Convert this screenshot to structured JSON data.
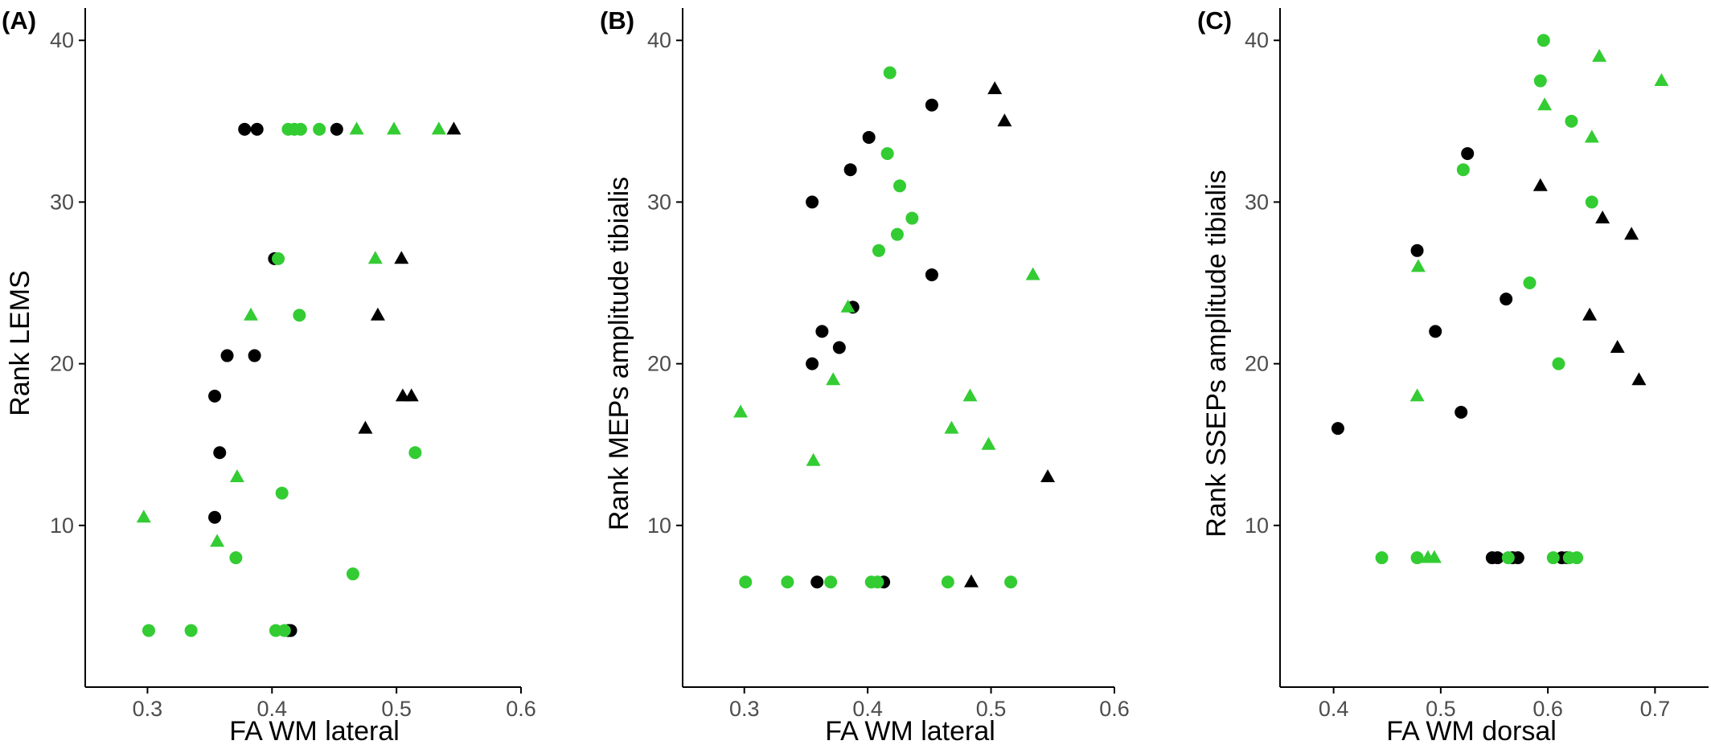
{
  "colors": {
    "black": "#000000",
    "green": "#33cc33",
    "axis": "#000000",
    "tick_text": "#4d4d4d"
  },
  "chart_data": [
    {
      "type": "scatter",
      "panel_label": "(A)",
      "title": "",
      "xlabel": "FA WM lateral",
      "ylabel": "Rank LEMS",
      "xlim": [
        0.25,
        0.6
      ],
      "ylim": [
        0,
        42
      ],
      "x_ticks": [
        "0.3",
        "0.4",
        "0.5",
        "0.6"
      ],
      "x_tick_values": [
        0.3,
        0.4,
        0.5,
        0.6
      ],
      "y_ticks": [
        "10",
        "20",
        "30",
        "40"
      ],
      "y_tick_values": [
        10,
        20,
        30,
        40
      ],
      "grid": false,
      "legend": "none",
      "series": [
        {
          "color": "black",
          "shape": "circle",
          "points": [
            [
              0.378,
              34.5
            ],
            [
              0.388,
              34.5
            ],
            [
              0.452,
              34.5
            ],
            [
              0.402,
              26.5
            ],
            [
              0.364,
              20.5
            ],
            [
              0.386,
              20.5
            ],
            [
              0.354,
              18
            ],
            [
              0.358,
              14.5
            ],
            [
              0.354,
              10.5
            ],
            [
              0.413,
              3.5
            ],
            [
              0.415,
              3.5
            ]
          ]
        },
        {
          "color": "black",
          "shape": "triangle",
          "points": [
            [
              0.546,
              34.5
            ],
            [
              0.504,
              26.5
            ],
            [
              0.485,
              23
            ],
            [
              0.505,
              18
            ],
            [
              0.512,
              18
            ],
            [
              0.475,
              16
            ]
          ]
        },
        {
          "color": "green",
          "shape": "circle",
          "points": [
            [
              0.413,
              34.5
            ],
            [
              0.418,
              34.5
            ],
            [
              0.423,
              34.5
            ],
            [
              0.438,
              34.5
            ],
            [
              0.405,
              26.5
            ],
            [
              0.422,
              23
            ],
            [
              0.515,
              14.5
            ],
            [
              0.408,
              12
            ],
            [
              0.371,
              8
            ],
            [
              0.465,
              7
            ],
            [
              0.301,
              3.5
            ],
            [
              0.335,
              3.5
            ],
            [
              0.403,
              3.5
            ],
            [
              0.41,
              3.5
            ]
          ]
        },
        {
          "color": "green",
          "shape": "triangle",
          "points": [
            [
              0.468,
              34.5
            ],
            [
              0.498,
              34.5
            ],
            [
              0.534,
              34.5
            ],
            [
              0.483,
              26.5
            ],
            [
              0.383,
              23
            ],
            [
              0.372,
              13
            ],
            [
              0.297,
              10.5
            ],
            [
              0.356,
              9
            ]
          ]
        }
      ]
    },
    {
      "type": "scatter",
      "panel_label": "(B)",
      "title": "",
      "xlabel": "FA WM lateral",
      "ylabel": "Rank MEPs amplitude tibialis",
      "xlim": [
        0.25,
        0.6
      ],
      "ylim": [
        0,
        42
      ],
      "x_ticks": [
        "0.3",
        "0.4",
        "0.5",
        "0.6"
      ],
      "x_tick_values": [
        0.3,
        0.4,
        0.5,
        0.6
      ],
      "y_ticks": [
        "10",
        "20",
        "30",
        "40"
      ],
      "y_tick_values": [
        10,
        20,
        30,
        40
      ],
      "grid": false,
      "legend": "none",
      "series": [
        {
          "color": "black",
          "shape": "circle",
          "points": [
            [
              0.452,
              36
            ],
            [
              0.401,
              34
            ],
            [
              0.386,
              32
            ],
            [
              0.355,
              30
            ],
            [
              0.452,
              25.5
            ],
            [
              0.388,
              23.5
            ],
            [
              0.363,
              22
            ],
            [
              0.377,
              21
            ],
            [
              0.355,
              20
            ],
            [
              0.359,
              6.5
            ],
            [
              0.413,
              6.5
            ]
          ]
        },
        {
          "color": "black",
          "shape": "triangle",
          "points": [
            [
              0.503,
              37
            ],
            [
              0.511,
              35
            ],
            [
              0.546,
              13
            ],
            [
              0.484,
              6.5
            ]
          ]
        },
        {
          "color": "green",
          "shape": "circle",
          "points": [
            [
              0.418,
              38
            ],
            [
              0.416,
              33
            ],
            [
              0.426,
              31
            ],
            [
              0.436,
              29
            ],
            [
              0.424,
              28
            ],
            [
              0.409,
              27
            ],
            [
              0.301,
              6.5
            ],
            [
              0.335,
              6.5
            ],
            [
              0.37,
              6.5
            ],
            [
              0.403,
              6.5
            ],
            [
              0.408,
              6.5
            ],
            [
              0.465,
              6.5
            ],
            [
              0.516,
              6.5
            ]
          ]
        },
        {
          "color": "green",
          "shape": "triangle",
          "points": [
            [
              0.534,
              25.5
            ],
            [
              0.384,
              23.5
            ],
            [
              0.372,
              19
            ],
            [
              0.483,
              18
            ],
            [
              0.297,
              17
            ],
            [
              0.468,
              16
            ],
            [
              0.498,
              15
            ],
            [
              0.356,
              14
            ]
          ]
        }
      ]
    },
    {
      "type": "scatter",
      "panel_label": "(C)",
      "title": "",
      "xlabel": "FA WM dorsal",
      "ylabel": "Rank  SSEPs amplitude tibialis",
      "xlim": [
        0.35,
        0.75
      ],
      "ylim": [
        0,
        42
      ],
      "x_ticks": [
        "0.4",
        "0.5",
        "0.6",
        "0.7"
      ],
      "x_tick_values": [
        0.4,
        0.5,
        0.6,
        0.7
      ],
      "y_ticks": [
        "10",
        "20",
        "30",
        "40"
      ],
      "y_tick_values": [
        10,
        20,
        30,
        40
      ],
      "grid": false,
      "legend": "none",
      "series": [
        {
          "color": "black",
          "shape": "circle",
          "points": [
            [
              0.525,
              33
            ],
            [
              0.478,
              27
            ],
            [
              0.561,
              24
            ],
            [
              0.495,
              22
            ],
            [
              0.519,
              17
            ],
            [
              0.404,
              16
            ],
            [
              0.548,
              8
            ],
            [
              0.553,
              8
            ],
            [
              0.567,
              8
            ],
            [
              0.572,
              8
            ],
            [
              0.613,
              8
            ],
            [
              0.618,
              8
            ]
          ]
        },
        {
          "color": "black",
          "shape": "triangle",
          "points": [
            [
              0.593,
              31
            ],
            [
              0.651,
              29
            ],
            [
              0.678,
              28
            ],
            [
              0.639,
              23
            ],
            [
              0.665,
              21
            ],
            [
              0.685,
              19
            ]
          ]
        },
        {
          "color": "green",
          "shape": "circle",
          "points": [
            [
              0.596,
              40
            ],
            [
              0.593,
              37.5
            ],
            [
              0.622,
              35
            ],
            [
              0.521,
              32
            ],
            [
              0.641,
              30
            ],
            [
              0.583,
              25
            ],
            [
              0.61,
              20
            ],
            [
              0.445,
              8
            ],
            [
              0.478,
              8
            ],
            [
              0.563,
              8
            ],
            [
              0.605,
              8
            ],
            [
              0.62,
              8
            ],
            [
              0.627,
              8
            ]
          ]
        },
        {
          "color": "green",
          "shape": "triangle",
          "points": [
            [
              0.648,
              39
            ],
            [
              0.706,
              37.5
            ],
            [
              0.597,
              36
            ],
            [
              0.641,
              34
            ],
            [
              0.479,
              26
            ],
            [
              0.478,
              18
            ],
            [
              0.488,
              8
            ],
            [
              0.494,
              8
            ]
          ]
        }
      ]
    }
  ]
}
